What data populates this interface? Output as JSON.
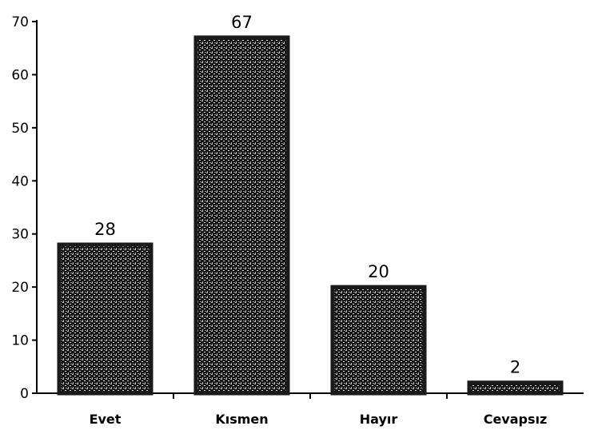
{
  "chart_data": {
    "type": "bar",
    "categories": [
      "Evet",
      "Kısmen",
      "Hayır",
      "Cevapsız"
    ],
    "values": [
      28,
      67,
      20,
      2
    ],
    "data_labels": [
      "28",
      "67",
      "20",
      "2"
    ],
    "title": "",
    "xlabel": "",
    "ylabel": "",
    "ylim": [
      0,
      70
    ],
    "yticks": [
      0,
      10,
      20,
      30,
      40,
      50,
      60,
      70
    ],
    "grid": false,
    "legend": "none",
    "colors": {
      "bar_fill": "#1a1a1a",
      "bar_texture": "#d8d8d8",
      "axis": "#000000"
    }
  }
}
